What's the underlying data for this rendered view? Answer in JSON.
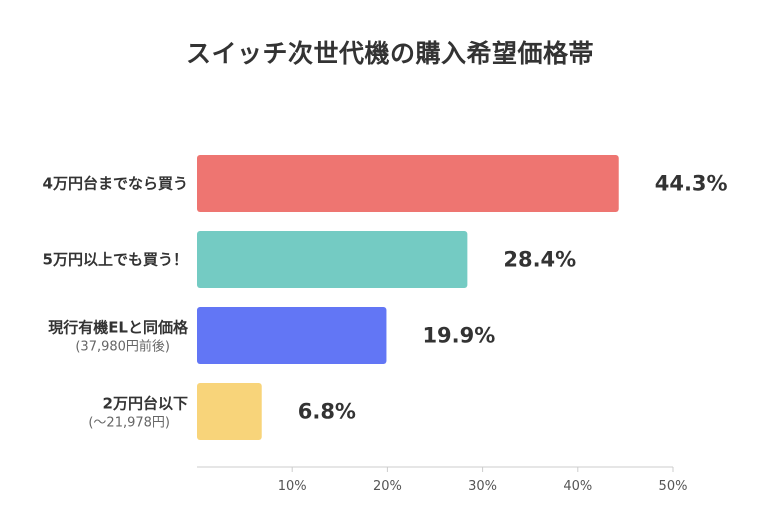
{
  "chart_data": {
    "type": "bar",
    "orientation": "horizontal",
    "title": "スイッチ次世代機の購入希望価格帯",
    "categories": [
      {
        "label": "4万円台までなら買う",
        "sublabel": ""
      },
      {
        "label": "5万円以上でも買う！",
        "sublabel": ""
      },
      {
        "label": "現行有機ELと同価格",
        "sublabel": "(37,980円前後)"
      },
      {
        "label": "2万円台以下",
        "sublabel": "(〜21,978円)"
      }
    ],
    "values": [
      44.3,
      28.4,
      19.9,
      6.8
    ],
    "value_labels": [
      "44.3%",
      "28.4%",
      "19.9%",
      "6.8%"
    ],
    "colors": [
      "#ee7571",
      "#74cbc3",
      "#6276f5",
      "#f8d47a"
    ],
    "xlim": [
      0,
      50
    ],
    "xticks": [
      10,
      20,
      30,
      40,
      50
    ],
    "xtick_labels": [
      "10%",
      "20%",
      "30%",
      "40%",
      "50%"
    ],
    "grid": false,
    "legend": "none"
  }
}
